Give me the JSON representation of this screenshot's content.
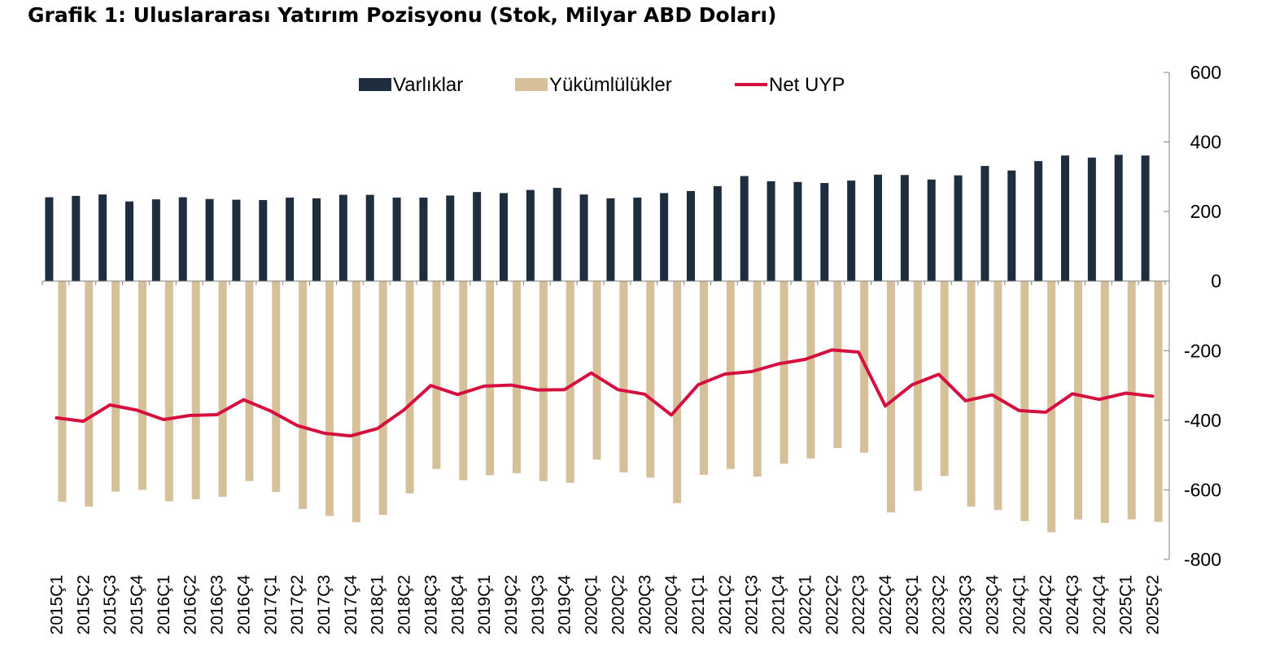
{
  "title": "Grafik 1: Uluslararası Yatırım Pozisyonu (Stok, Milyar ABD Doları)",
  "chart_data": {
    "type": "bar",
    "categories": [
      "2015Ç1",
      "2015Ç2",
      "2015Ç3",
      "2015Ç4",
      "2016Ç1",
      "2016Ç2",
      "2016Ç3",
      "2016Ç4",
      "2017Ç1",
      "2017Ç2",
      "2017Ç3",
      "2017Ç4",
      "2018Ç1",
      "2018Ç2",
      "2018Ç3",
      "2018Ç4",
      "2019Ç1",
      "2019Ç2",
      "2019Ç3",
      "2019Ç4",
      "2020Ç1",
      "2020Ç2",
      "2020Ç3",
      "2020Ç4",
      "2021Ç1",
      "2021Ç2",
      "2021Ç3",
      "2021Ç4",
      "2022Ç1",
      "2022Ç2",
      "2022Ç3",
      "2022Ç4",
      "2023Ç1",
      "2023Ç2",
      "2023Ç3",
      "2023Ç4",
      "2024Ç1",
      "2024Ç2",
      "2024Ç3",
      "2024Ç4",
      "2025Ç1",
      "2025Ç2"
    ],
    "series": [
      {
        "name": "Varlıklar",
        "type": "bar",
        "color": "#1f2e3f",
        "values": [
          241,
          245,
          249,
          229,
          235,
          241,
          236,
          234,
          233,
          240,
          238,
          248,
          248,
          240,
          240,
          246,
          256,
          253,
          262,
          268,
          249,
          238,
          240,
          253,
          259,
          273,
          302,
          287,
          285,
          282,
          289,
          306,
          305,
          292,
          304,
          331,
          318,
          345,
          361,
          355,
          363,
          361
        ]
      },
      {
        "name": "Yükümlülükler",
        "type": "bar",
        "color": "#d6c09a",
        "values": [
          -634,
          -648,
          -605,
          -600,
          -633,
          -627,
          -620,
          -575,
          -606,
          -655,
          -675,
          -693,
          -672,
          -610,
          -540,
          -572,
          -558,
          -552,
          -575,
          -580,
          -513,
          -550,
          -565,
          -638,
          -557,
          -540,
          -562,
          -525,
          -510,
          -480,
          -493,
          -665,
          -603,
          -560,
          -648,
          -658,
          -690,
          -722,
          -685,
          -695,
          -685,
          -692
        ]
      },
      {
        "name": "Net UYP",
        "type": "line",
        "color": "#d5103f",
        "values": [
          -393,
          -403,
          -356,
          -371,
          -398,
          -386,
          -384,
          -341,
          -373,
          -415,
          -437,
          -445,
          -424,
          -370,
          -300,
          -326,
          -302,
          -299,
          -313,
          -312,
          -264,
          -312,
          -325,
          -385,
          -298,
          -267,
          -260,
          -238,
          -225,
          -198,
          -204,
          -359,
          -298,
          -268,
          -344,
          -327,
          -372,
          -377,
          -324,
          -340,
          -322,
          -331
        ]
      }
    ],
    "y_axis": {
      "position": "right",
      "ylim": [
        -800,
        600
      ],
      "ticks": [
        600,
        400,
        200,
        0,
        -200,
        -400,
        -600,
        -800
      ],
      "tick_labels": [
        "600",
        "400",
        "200",
        "0",
        "-200",
        "-400",
        "-600",
        "-800"
      ]
    },
    "legend": {
      "placement": "top-center"
    },
    "grid": false
  }
}
